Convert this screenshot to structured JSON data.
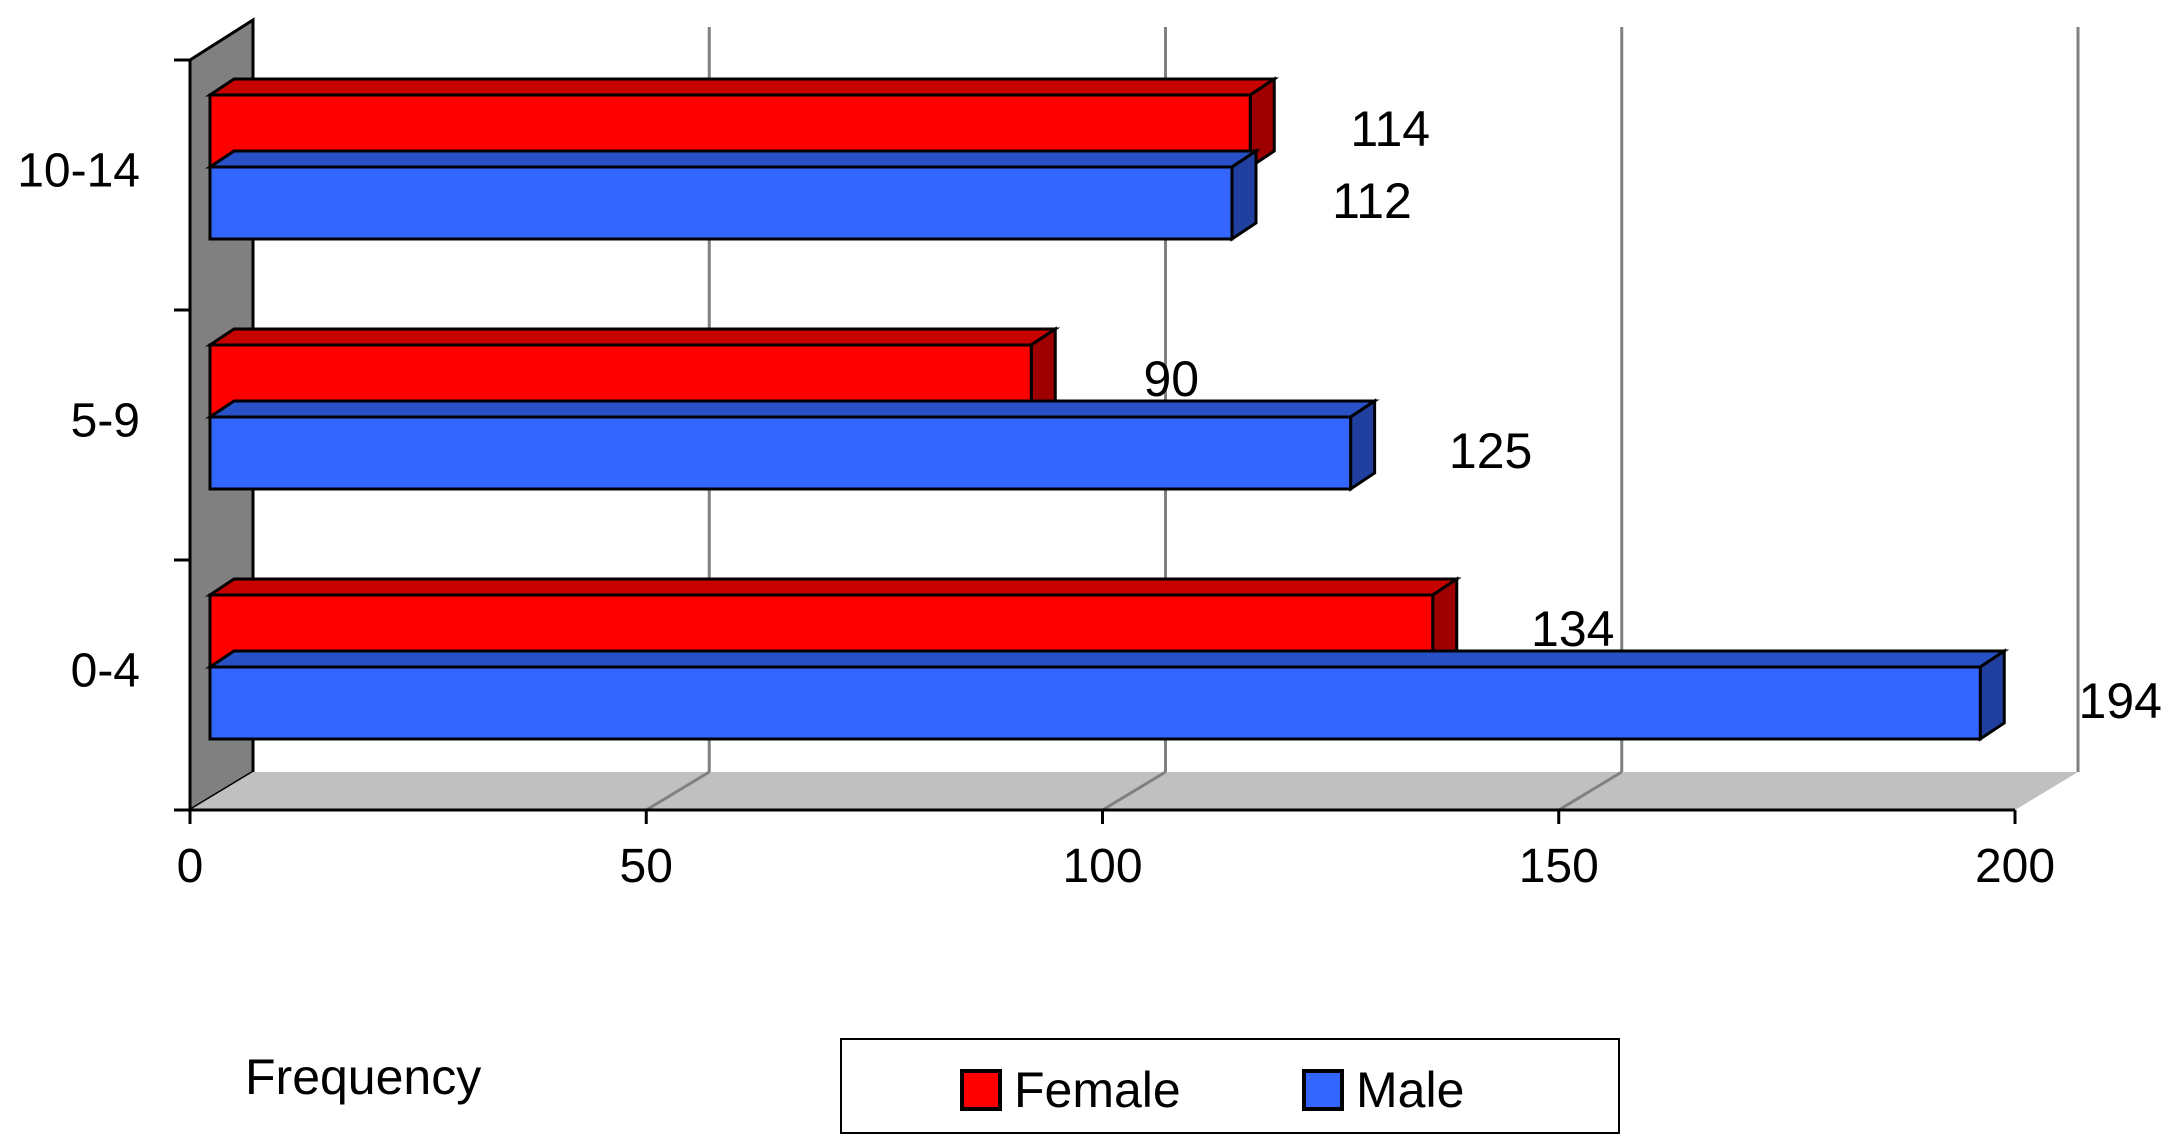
{
  "chart_data": {
    "type": "bar",
    "orientation": "horizontal",
    "style": "3d-clustered",
    "categories": [
      "0-4",
      "5-9",
      "10-14"
    ],
    "series": [
      {
        "name": "Female",
        "values": [
          134,
          90,
          114
        ],
        "color": "#ff0000"
      },
      {
        "name": "Male",
        "values": [
          194,
          125,
          112
        ],
        "color": "#3366ff"
      }
    ],
    "xlabel": "Frequency",
    "ylabel": "",
    "xlim": [
      0,
      200
    ],
    "xticks": [
      "0",
      "50",
      "100",
      "150",
      "200"
    ],
    "grid": true,
    "legend_position": "bottom"
  }
}
